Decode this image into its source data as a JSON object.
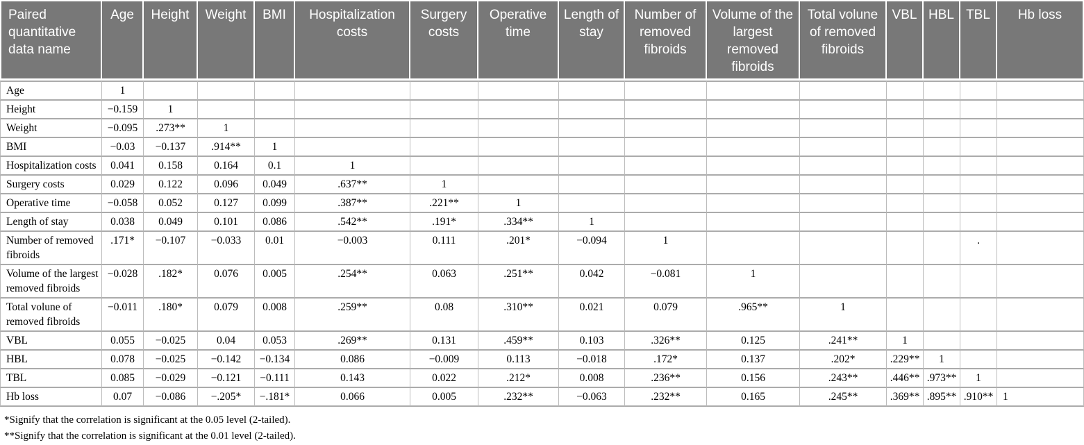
{
  "table": {
    "columns": [
      "Paired quantitative data name",
      "Age",
      "Height",
      "Weight",
      "BMI",
      "Hospitalization costs",
      "Surgery costs",
      "Operative time",
      "Length of stay",
      "Number of removed fibroids",
      "Volume of the largest removed fibroids",
      "Total volune of removed fibroids",
      "VBL",
      "HBL",
      "TBL",
      "Hb loss"
    ],
    "rows": [
      {
        "label": "Age",
        "values": [
          "1",
          "",
          "",
          "",
          "",
          "",
          "",
          "",
          "",
          "",
          "",
          "",
          "",
          "",
          ""
        ]
      },
      {
        "label": "Height",
        "values": [
          "−0.159",
          "1",
          "",
          "",
          "",
          "",
          "",
          "",
          "",
          "",
          "",
          "",
          "",
          "",
          ""
        ]
      },
      {
        "label": "Weight",
        "values": [
          "−0.095",
          ".273**",
          "1",
          "",
          "",
          "",
          "",
          "",
          "",
          "",
          "",
          "",
          "",
          "",
          ""
        ]
      },
      {
        "label": "BMI",
        "values": [
          "−0.03",
          "−0.137",
          ".914**",
          "1",
          "",
          "",
          "",
          "",
          "",
          "",
          "",
          "",
          "",
          "",
          ""
        ]
      },
      {
        "label": "Hospitalization costs",
        "values": [
          "0.041",
          "0.158",
          "0.164",
          "0.1",
          "1",
          "",
          "",
          "",
          "",
          "",
          "",
          "",
          "",
          "",
          ""
        ]
      },
      {
        "label": "Surgery costs",
        "values": [
          "0.029",
          "0.122",
          "0.096",
          "0.049",
          ".637**",
          "1",
          "",
          "",
          "",
          "",
          "",
          "",
          "",
          "",
          ""
        ]
      },
      {
        "label": "Operative time",
        "values": [
          "−0.058",
          "0.052",
          "0.127",
          "0.099",
          ".387**",
          ".221**",
          "1",
          "",
          "",
          "",
          "",
          "",
          "",
          "",
          ""
        ]
      },
      {
        "label": "Length of stay",
        "values": [
          "0.038",
          "0.049",
          "0.101",
          "0.086",
          ".542**",
          ".191*",
          ".334**",
          "1",
          "",
          "",
          "",
          "",
          "",
          "",
          ""
        ]
      },
      {
        "label": "Number of removed fibroids",
        "values": [
          ".171*",
          "−0.107",
          "−0.033",
          "0.01",
          "−0.003",
          "0.111",
          ".201*",
          "−0.094",
          "1",
          "",
          "",
          "",
          "",
          ".",
          ""
        ]
      },
      {
        "label": "Volume of the largest removed fibroids",
        "values": [
          "−0.028",
          ".182*",
          "0.076",
          "0.005",
          ".254**",
          "0.063",
          ".251**",
          "0.042",
          "−0.081",
          "1",
          "",
          "",
          "",
          "",
          ""
        ]
      },
      {
        "label": "Total volune of removed fibroids",
        "values": [
          "−0.011",
          ".180*",
          "0.079",
          "0.008",
          ".259**",
          "0.08",
          ".310**",
          "0.021",
          "0.079",
          ".965**",
          "1",
          "",
          "",
          "",
          ""
        ]
      },
      {
        "label": "VBL",
        "values": [
          "0.055",
          "−0.025",
          "0.04",
          "0.053",
          ".269**",
          "0.131",
          ".459**",
          "0.103",
          ".326**",
          "0.125",
          ".241**",
          "1",
          "",
          "",
          ""
        ]
      },
      {
        "label": "HBL",
        "values": [
          "0.078",
          "−0.025",
          "−0.142",
          "−0.134",
          "0.086",
          "−0.009",
          "0.113",
          "−0.018",
          ".172*",
          "0.137",
          ".202*",
          ".229**",
          "1",
          "",
          ""
        ]
      },
      {
        "label": "TBL",
        "values": [
          "0.085",
          "−0.029",
          "−0.121",
          "−0.111",
          "0.143",
          "0.022",
          ".212*",
          "0.008",
          ".236**",
          "0.156",
          ".243**",
          ".446**",
          ".973**",
          "1",
          ""
        ]
      },
      {
        "label": "Hb loss",
        "values": [
          "0.07",
          "−0.086",
          "−.205*",
          "−.181*",
          "0.066",
          "0.005",
          ".232**",
          "−0.063",
          ".232**",
          "0.165",
          ".245**",
          ".369**",
          ".895**",
          ".910**",
          "1"
        ]
      }
    ]
  },
  "footnotes": [
    "*Signify that the correlation is significant at the 0.05 level (2-tailed).",
    "**Signify that the correlation is significant at the 0.01 level (2-tailed)."
  ],
  "colors": {
    "header_background": "#787878",
    "header_text": "#ffffff",
    "grid_line": "#ababab",
    "body_text": "#000000"
  }
}
